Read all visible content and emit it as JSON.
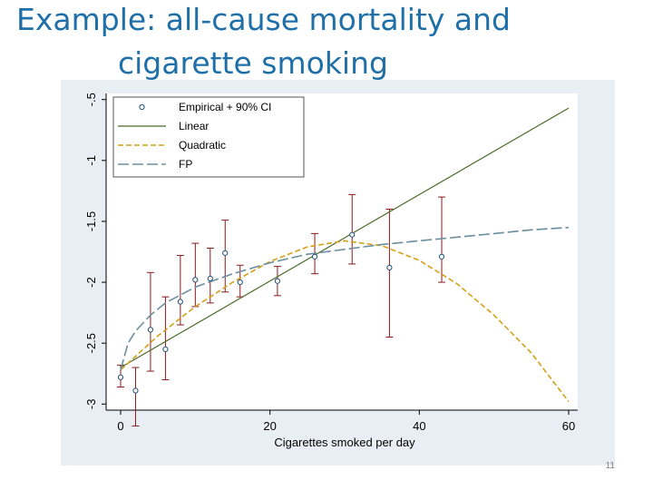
{
  "slide": {
    "title_line1": "Example: all-cause mortality and",
    "title_line2": "cigarette smoking",
    "page_number": "11"
  },
  "colors": {
    "background": "#e8eef4",
    "plot_area": "#ffffff",
    "empirical_marker": "#1f4e79",
    "ci_bar": "#8b1a1a",
    "linear": "#4b6b2a",
    "quadratic": "#d4a01a",
    "fp": "#6b8e9e"
  },
  "chart_data": {
    "type": "line",
    "xlabel": "Cigarettes smoked per day",
    "ylabel": "",
    "xlim": [
      0,
      60
    ],
    "ylim": [
      -3.05,
      -0.45
    ],
    "x_ticks": [
      0,
      20,
      40,
      60
    ],
    "x_tick_labels": [
      "0",
      "20",
      "40",
      "60"
    ],
    "y_ticks": [
      -3,
      -2.5,
      -2,
      -1.5,
      -1,
      -0.5
    ],
    "y_tick_labels": [
      "-3",
      "-2.5",
      "-2",
      "-1.5",
      "-1",
      "-.5"
    ],
    "grid": false,
    "legend_position": "top-left",
    "legend": [
      "Empirical + 90% CI",
      "Linear",
      "Quadratic",
      "FP"
    ],
    "empirical": [
      {
        "x": 0,
        "y": -2.78,
        "lo": -2.86,
        "hi": -2.68
      },
      {
        "x": 2,
        "y": -2.89,
        "lo": -3.18,
        "hi": -2.7
      },
      {
        "x": 4,
        "y": -2.39,
        "lo": -2.73,
        "hi": -1.92
      },
      {
        "x": 6,
        "y": -2.55,
        "lo": -2.8,
        "hi": -2.12
      },
      {
        "x": 8,
        "y": -2.16,
        "lo": -2.35,
        "hi": -1.78
      },
      {
        "x": 10,
        "y": -1.98,
        "lo": -2.2,
        "hi": -1.68
      },
      {
        "x": 12,
        "y": -1.97,
        "lo": -2.17,
        "hi": -1.72
      },
      {
        "x": 14,
        "y": -1.76,
        "lo": -2.08,
        "hi": -1.49
      },
      {
        "x": 16,
        "y": -2.0,
        "lo": -2.12,
        "hi": -1.86
      },
      {
        "x": 21,
        "y": -1.99,
        "lo": -2.11,
        "hi": -1.87
      },
      {
        "x": 26,
        "y": -1.79,
        "lo": -1.93,
        "hi": -1.6
      },
      {
        "x": 31,
        "y": -1.61,
        "lo": -1.85,
        "hi": -1.28
      },
      {
        "x": 36,
        "y": -1.88,
        "lo": -2.45,
        "hi": -1.4
      },
      {
        "x": 43,
        "y": -1.79,
        "lo": -2.0,
        "hi": -1.3
      }
    ],
    "series": [
      {
        "name": "Linear",
        "x": [
          0,
          60
        ],
        "y": [
          -2.7,
          -0.57
        ]
      },
      {
        "name": "Quadratic",
        "x": [
          0,
          5,
          10,
          15,
          20,
          25,
          30,
          35,
          40,
          45,
          50,
          55,
          60
        ],
        "y": [
          -2.72,
          -2.44,
          -2.2,
          -2.0,
          -1.83,
          -1.71,
          -1.66,
          -1.7,
          -1.82,
          -2.01,
          -2.27,
          -2.58,
          -2.98
        ]
      },
      {
        "name": "FP",
        "x": [
          0,
          1,
          2,
          4,
          6,
          10,
          15,
          20,
          25,
          30,
          35,
          40,
          45,
          50,
          55,
          60
        ],
        "y": [
          -2.72,
          -2.5,
          -2.4,
          -2.27,
          -2.17,
          -2.04,
          -1.93,
          -1.84,
          -1.77,
          -1.73,
          -1.69,
          -1.66,
          -1.63,
          -1.6,
          -1.57,
          -1.55
        ]
      }
    ]
  }
}
